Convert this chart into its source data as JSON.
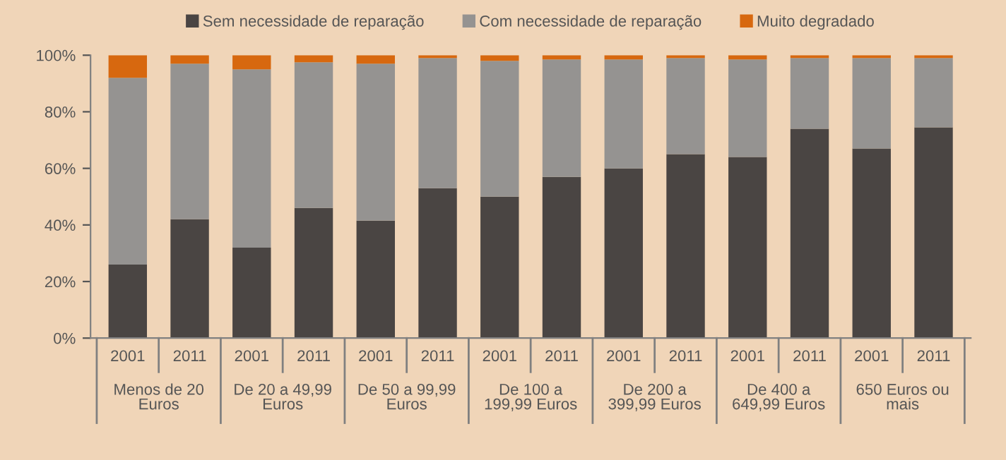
{
  "chart_data": {
    "type": "bar",
    "stacked": true,
    "categories": [
      "2001",
      "2011",
      "2001",
      "2011",
      "2001",
      "2011",
      "2001",
      "2011",
      "2001",
      "2011",
      "2001",
      "2011",
      "2001",
      "2011"
    ],
    "series": [
      {
        "name": "Sem necessidade de reparação",
        "color": "#4a4543",
        "values": [
          26,
          42,
          32,
          46,
          41.5,
          53,
          50,
          57,
          60,
          65,
          64,
          74,
          67,
          74.5
        ]
      },
      {
        "name": "Com necessidade de reparação",
        "color": "#959391",
        "values": [
          66,
          55,
          63,
          51.5,
          55.5,
          46,
          48,
          41.5,
          38.5,
          34,
          34.5,
          25,
          32,
          24.5
        ]
      },
      {
        "name": "Muito degradado",
        "color": "#d7680f",
        "values": [
          8,
          3,
          5,
          2.5,
          3,
          1,
          2,
          1.5,
          1.5,
          1,
          1.5,
          1,
          1,
          1
        ]
      }
    ],
    "annotations": [
      "Menos de 20\nEuros",
      "De 20 a 49,99\nEuros",
      "De 50 a 99,99\nEuros",
      "De 100 a\n199,99 Euros",
      "De 200 a\n399,99 Euros",
      "De 400 a\n649,99 Euros",
      "650 Euros ou\nmais"
    ],
    "ylim": [
      0,
      100
    ],
    "yticks": [
      {
        "value": 0,
        "label": "0%"
      },
      {
        "value": 20,
        "label": "20%"
      },
      {
        "value": 40,
        "label": "40%"
      },
      {
        "value": 60,
        "label": "60%"
      },
      {
        "value": 80,
        "label": "80%"
      },
      {
        "value": 100,
        "label": "100%"
      }
    ],
    "legend": "top",
    "grid": false
  }
}
